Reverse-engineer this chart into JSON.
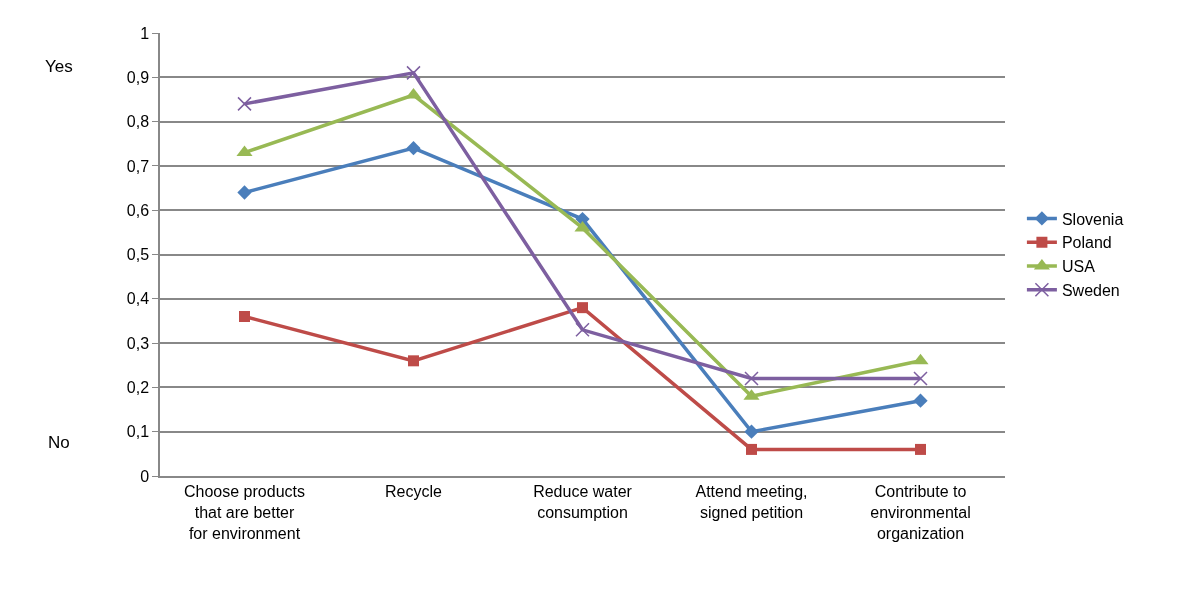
{
  "chart_data": {
    "type": "line",
    "categories": [
      "Choose products that are better for environment",
      "Recycle",
      "Reduce water consumption",
      "Attend meeting, signed petition",
      "Contribute to environmental organization"
    ],
    "series": [
      {
        "name": "Slovenia",
        "color": "#4a7ebb",
        "marker": "diamond",
        "values": [
          0.64,
          0.74,
          0.58,
          0.1,
          0.17
        ]
      },
      {
        "name": "Poland",
        "color": "#be4b48",
        "marker": "square",
        "values": [
          0.36,
          0.26,
          0.38,
          0.06,
          0.06
        ]
      },
      {
        "name": "USA",
        "color": "#98b954",
        "marker": "triangle",
        "values": [
          0.73,
          0.86,
          0.56,
          0.18,
          0.26
        ]
      },
      {
        "name": "Sweden",
        "color": "#7d5fa0",
        "marker": "cross",
        "values": [
          0.84,
          0.91,
          0.33,
          0.22,
          0.22
        ]
      }
    ],
    "ylim": [
      0,
      1
    ],
    "yticks": [
      0,
      {
        "value": 0.1,
        "label": "0,1"
      },
      {
        "value": 0.2,
        "label": "0,2"
      },
      {
        "value": 0.3,
        "label": "0,3"
      },
      {
        "value": 0.4,
        "label": "0,4"
      },
      {
        "value": 0.5,
        "label": "0,5"
      },
      {
        "value": 0.6,
        "label": "0,6"
      },
      {
        "value": 0.7,
        "label": "0,7"
      },
      {
        "value": 0.8,
        "label": "0,8"
      },
      {
        "value": 0.9,
        "label": "0,9"
      },
      1
    ],
    "annotations": [
      "Yes",
      "No"
    ],
    "grid": "y",
    "legend": "right",
    "line_style": "solid"
  }
}
